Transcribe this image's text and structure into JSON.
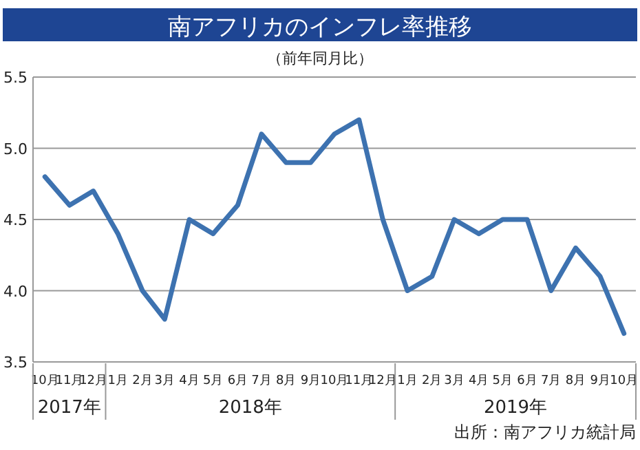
{
  "chart_data": {
    "type": "line",
    "title": "南アフリカのインフレ率推移",
    "subtitle": "（前年同月比）",
    "x": [
      "2017-10",
      "2017-11",
      "2017-12",
      "2018-01",
      "2018-02",
      "2018-03",
      "2018-04",
      "2018-05",
      "2018-06",
      "2018-07",
      "2018-08",
      "2018-09",
      "2018-10",
      "2018-11",
      "2018-12",
      "2019-01",
      "2019-02",
      "2019-03",
      "2019-04",
      "2019-05",
      "2019-06",
      "2019-07",
      "2019-08",
      "2019-09",
      "2019-10"
    ],
    "xticks": [
      {
        "value": "2017-10",
        "label": "10月"
      },
      {
        "value": "2017-11",
        "label": "11月"
      },
      {
        "value": "2017-12",
        "label": "12月"
      },
      {
        "value": "2018-01",
        "label": "1月"
      },
      {
        "value": "2018-02",
        "label": "2月"
      },
      {
        "value": "2018-03",
        "label": "3月"
      },
      {
        "value": "2018-04",
        "label": "4月"
      },
      {
        "value": "2018-05",
        "label": "5月"
      },
      {
        "value": "2018-06",
        "label": "6月"
      },
      {
        "value": "2018-07",
        "label": "7月"
      },
      {
        "value": "2018-08",
        "label": "8月"
      },
      {
        "value": "2018-09",
        "label": "9月"
      },
      {
        "value": "2018-10",
        "label": "10月"
      },
      {
        "value": "2018-11",
        "label": "11月"
      },
      {
        "value": "2018-12",
        "label": "12月"
      },
      {
        "value": "2019-01",
        "label": "1月"
      },
      {
        "value": "2019-02",
        "label": "2月"
      },
      {
        "value": "2019-03",
        "label": "3月"
      },
      {
        "value": "2019-04",
        "label": "4月"
      },
      {
        "value": "2019-05",
        "label": "5月"
      },
      {
        "value": "2019-06",
        "label": "6月"
      },
      {
        "value": "2019-07",
        "label": "7月"
      },
      {
        "value": "2019-08",
        "label": "8月"
      },
      {
        "value": "2019-09",
        "label": "9月"
      },
      {
        "value": "2019-10",
        "label": "10月"
      }
    ],
    "values": [
      4.8,
      4.6,
      4.7,
      4.4,
      4.0,
      3.8,
      4.5,
      4.4,
      4.6,
      5.1,
      4.9,
      4.9,
      5.1,
      5.2,
      4.5,
      4.0,
      4.1,
      4.5,
      4.4,
      4.5,
      4.5,
      4.0,
      4.3,
      4.1,
      3.7
    ],
    "color": "#3d72b0",
    "xlim": [
      "2017-09-16",
      "2019-10-16"
    ],
    "ylim": [
      3.5,
      5.5
    ],
    "yticks": [
      3.5,
      {
        "value": 4.0,
        "label": "4.0"
      },
      4.5,
      {
        "value": 5.0,
        "label": "5.0"
      },
      5.5
    ],
    "grid": "y",
    "marker": "none",
    "line_style": "solid",
    "annotations": [
      "2017年",
      "2018年",
      "2019年",
      "出所：南アフリカ統計局"
    ]
  }
}
